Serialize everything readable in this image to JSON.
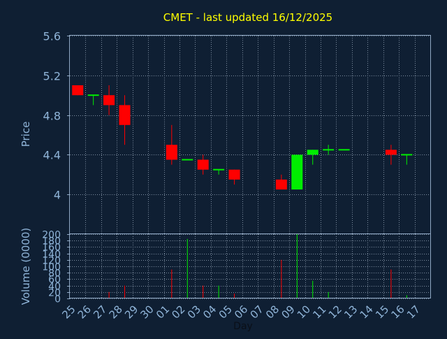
{
  "chart_data": [
    {
      "type": "candlestick",
      "title": "CMET - last updated 16/12/2025",
      "ylabel": "Price",
      "ylim": [
        3.6,
        5.6
      ],
      "yticks": [
        "5.6",
        "5.2",
        "4.8",
        "4.4",
        "4"
      ],
      "ytick_values": [
        5.6,
        5.2,
        4.8,
        4.4,
        4.0
      ],
      "grid": true,
      "x": [
        "25",
        "26",
        "27",
        "28",
        "29",
        "30",
        "01",
        "02",
        "03",
        "04",
        "05",
        "06",
        "07",
        "08",
        "09",
        "10",
        "11",
        "12",
        "13",
        "14",
        "15",
        "16",
        "17"
      ],
      "candles": [
        {
          "x": "25",
          "open": 5.1,
          "close": 5.0,
          "high": 5.1,
          "low": 5.0
        },
        {
          "x": "26",
          "open": 5.0,
          "close": 5.0,
          "high": 5.0,
          "low": 4.9
        },
        {
          "x": "27",
          "open": 5.0,
          "close": 4.9,
          "high": 5.1,
          "low": 4.8
        },
        {
          "x": "28",
          "open": 4.9,
          "close": 4.7,
          "high": 5.0,
          "low": 4.5
        },
        {
          "x": "01",
          "open": 4.5,
          "close": 4.35,
          "high": 4.7,
          "low": 4.3
        },
        {
          "x": "02",
          "open": 4.35,
          "close": 4.35,
          "high": 4.35,
          "low": 4.35
        },
        {
          "x": "03",
          "open": 4.35,
          "close": 4.25,
          "high": 4.4,
          "low": 4.2
        },
        {
          "x": "04",
          "open": 4.25,
          "close": 4.25,
          "high": 4.25,
          "low": 4.2
        },
        {
          "x": "05",
          "open": 4.25,
          "close": 4.15,
          "high": 4.25,
          "low": 4.1
        },
        {
          "x": "08",
          "open": 4.15,
          "close": 4.05,
          "high": 4.2,
          "low": 4.05
        },
        {
          "x": "09",
          "open": 4.05,
          "close": 4.4,
          "high": 4.4,
          "low": 4.05
        },
        {
          "x": "10",
          "open": 4.4,
          "close": 4.45,
          "high": 4.45,
          "low": 4.3
        },
        {
          "x": "11",
          "open": 4.45,
          "close": 4.45,
          "high": 4.5,
          "low": 4.4
        },
        {
          "x": "12",
          "open": 4.45,
          "close": 4.45,
          "high": 4.45,
          "low": 4.45
        },
        {
          "x": "15",
          "open": 4.45,
          "close": 4.4,
          "high": 4.5,
          "low": 4.3
        },
        {
          "x": "16",
          "open": 4.4,
          "close": 4.4,
          "high": 4.4,
          "low": 4.3
        }
      ]
    },
    {
      "type": "bar",
      "ylabel": "Volume (0000)",
      "xlabel": "Day",
      "ylim": [
        0,
        200
      ],
      "yticks": [
        "200",
        "180",
        "160",
        "140",
        "120",
        "100",
        "80",
        "60",
        "40",
        "20",
        "0"
      ],
      "ytick_values": [
        200,
        180,
        160,
        140,
        120,
        100,
        80,
        60,
        40,
        20,
        0
      ],
      "grid": true,
      "x": [
        "25",
        "26",
        "27",
        "28",
        "29",
        "30",
        "01",
        "02",
        "03",
        "04",
        "05",
        "06",
        "07",
        "08",
        "09",
        "10",
        "11",
        "12",
        "13",
        "14",
        "15",
        "16",
        "17"
      ],
      "volumes": [
        {
          "x": "27",
          "value": 20,
          "direction": "down"
        },
        {
          "x": "28",
          "value": 40,
          "direction": "down"
        },
        {
          "x": "01",
          "value": 90,
          "direction": "down"
        },
        {
          "x": "02",
          "value": 185,
          "direction": "up"
        },
        {
          "x": "03",
          "value": 40,
          "direction": "down"
        },
        {
          "x": "04",
          "value": 40,
          "direction": "up"
        },
        {
          "x": "05",
          "value": 15,
          "direction": "down"
        },
        {
          "x": "08",
          "value": 120,
          "direction": "down"
        },
        {
          "x": "09",
          "value": 200,
          "direction": "up"
        },
        {
          "x": "10",
          "value": 55,
          "direction": "up"
        },
        {
          "x": "11",
          "value": 20,
          "direction": "up"
        },
        {
          "x": "15",
          "value": 90,
          "direction": "down"
        },
        {
          "x": "16",
          "value": 10,
          "direction": "up"
        }
      ]
    }
  ],
  "colors": {
    "background": "#0f1f33",
    "title": "#ffff00",
    "axis_text": "#8fb4d8",
    "frame": "#8fa8c4",
    "grid": "#7d8da0",
    "up": "#00ee00",
    "down": "#ff0000"
  }
}
